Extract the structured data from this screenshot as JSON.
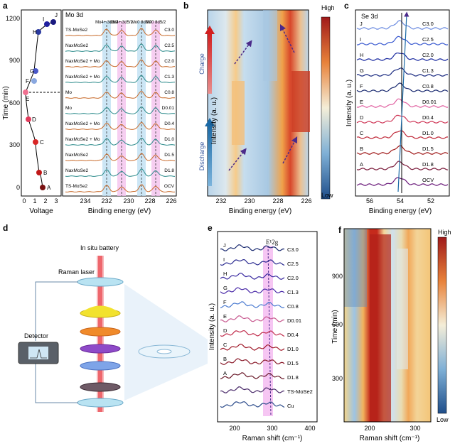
{
  "panel_labels": {
    "a": "a",
    "b": "b",
    "c": "c",
    "d": "d",
    "e": "e",
    "f": "f"
  },
  "panel_a": {
    "ylabel": "Time (min)",
    "xlabel": "Voltage",
    "yticks": [
      "0",
      "300",
      "600",
      "900",
      "1200"
    ],
    "xticks": [
      "0",
      "1",
      "2",
      "3"
    ],
    "points": [
      "A",
      "B",
      "C",
      "D",
      "E",
      "F",
      "G",
      "H",
      "I",
      "J"
    ],
    "title": "Mo 3d",
    "peak_labels": [
      "Mo4+ 3d3/2",
      "Mo4+ 3d5/2",
      "Mo0 3d3/2",
      "Mo0 3d5/2"
    ],
    "rows": [
      {
        "left": "TS-MoSe2",
        "right": "C3.0"
      },
      {
        "left": "NaxMoSe2",
        "right": "C2.5"
      },
      {
        "left": "NaxMoSe2 + Mo",
        "right": "C2.0"
      },
      {
        "left": "NaxMoSe2 + Mo",
        "right": "C1.3"
      },
      {
        "left": "Mo",
        "right": "C0.8"
      },
      {
        "left": "Mo",
        "right": "D0.01"
      },
      {
        "left": "NaxMoSe2 + Mo",
        "right": "D0.4"
      },
      {
        "left": "NaxMoSe2 + Mo",
        "right": "D1.0"
      },
      {
        "left": "NaxMoSe2",
        "right": "D1.5"
      },
      {
        "left": "NaxMoSe2",
        "right": "D1.8"
      },
      {
        "left": "TS-MoSe2",
        "right": "OCV"
      }
    ],
    "xlabel2": "Binding energy (eV)",
    "xticks2": [
      "234",
      "232",
      "230",
      "228",
      "226"
    ]
  },
  "panel_b": {
    "ylabel": "Intensity (a. u.)",
    "xlabel": "Binding energy (eV)",
    "xticks": [
      "232",
      "230",
      "228",
      "226"
    ],
    "charge": "Charge",
    "discharge": "Discharge",
    "high": "High",
    "low": "Low"
  },
  "panel_c": {
    "title": "Se 3d",
    "ylabel": "Intensity (a. u.)",
    "xlabel": "Binding energy (eV)",
    "xticks": [
      "56",
      "54",
      "52"
    ],
    "left_labels": [
      "J",
      "I",
      "H",
      "G",
      "F",
      "E",
      "D",
      "C",
      "B",
      "A"
    ],
    "right_labels": [
      "C3.0",
      "C2.5",
      "C2.0",
      "C1.3",
      "C0.8",
      "D0.01",
      "D0.4",
      "D1.0",
      "D1.5",
      "D1.8",
      "OCV"
    ]
  },
  "panel_d": {
    "battery": "In situ battery",
    "laser": "Raman laser",
    "detector": "Detector"
  },
  "panel_e": {
    "ylabel": "Intensity (a. u.)",
    "xlabel": "Raman shift (cm⁻¹)",
    "xticks": [
      "200",
      "300",
      "400"
    ],
    "peak": "E¹2g",
    "left_labels": [
      "J",
      "I",
      "H",
      "G",
      "F",
      "E",
      "D",
      "C",
      "B",
      "A"
    ],
    "right_labels": [
      "C3.0",
      "C2.5",
      "C2.0",
      "C1.3",
      "C0.8",
      "D0.01",
      "D0.4",
      "D1.0",
      "D1.5",
      "D1.8",
      "TS-MoSe2",
      "Cu"
    ]
  },
  "panel_f": {
    "ylabel": "Time (min)",
    "xlabel": "Raman shift (cm⁻¹)",
    "yticks": [
      "300",
      "600",
      "900"
    ],
    "xticks": [
      "200",
      "300"
    ],
    "high": "High",
    "low": "Low"
  }
}
